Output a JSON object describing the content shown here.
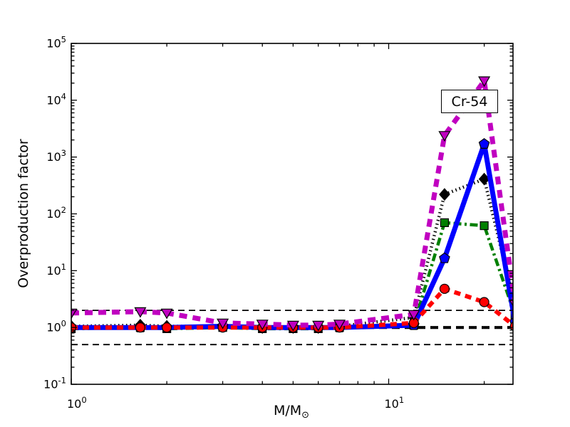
{
  "figure": {
    "background": "#ffffff",
    "frame_color": "#000000"
  },
  "chart_data": {
    "type": "line",
    "x_scale": "log",
    "y_scale": "log",
    "xlabel": {
      "main": "M/M",
      "sub": "⊙"
    },
    "ylabel": "Overproduction factor",
    "annotation": {
      "text": "Cr-54"
    },
    "xlim": [
      1,
      24.7
    ],
    "ylim": [
      0.1,
      100000
    ],
    "x_major_tick_exponents": [
      0,
      1
    ],
    "y_major_tick_exponents": [
      -1,
      0,
      1,
      2,
      3,
      4,
      5
    ],
    "x_minor_ticks": [
      2,
      3,
      4,
      5,
      6,
      7,
      8,
      9,
      20
    ],
    "grid": "off",
    "legend": "none",
    "x": [
      1.0,
      1.65,
      2,
      3,
      4,
      5,
      6,
      7,
      12,
      15,
      20,
      25
    ],
    "series": [
      {
        "name": "black-dotted-diamonds",
        "color": "#000000",
        "linestyle": "dotted",
        "linewidth": 4.5,
        "dash": "1.5 4",
        "marker": "diamond",
        "values": [
          1.05,
          1.1,
          1.05,
          1.05,
          1.0,
          1.0,
          1.0,
          1.05,
          1.5,
          220,
          410,
          2.4
        ]
      },
      {
        "name": "green-dashdot-squares",
        "color": "#008000",
        "linestyle": "dashdot",
        "linewidth": 4.5,
        "dash": "11 4.5 3 4.5",
        "marker": "square",
        "values": [
          0.95,
          1.0,
          0.95,
          1.0,
          0.95,
          0.95,
          0.95,
          1.0,
          1.1,
          70,
          62,
          1.65
        ]
      },
      {
        "name": "blue-solid-pentagons",
        "color": "#0000ff",
        "linestyle": "solid",
        "linewidth": 7,
        "dash": "",
        "marker": "pentagon",
        "values": [
          1.0,
          1.0,
          1.0,
          1.05,
          1.0,
          1.0,
          1.0,
          1.0,
          1.1,
          16.5,
          1700,
          1.25
        ]
      },
      {
        "name": "red-dashed-circles",
        "color": "#ff0000",
        "linestyle": "dashed",
        "linewidth": 6,
        "dash": "9 7",
        "marker": "circle",
        "values": [
          1.0,
          1.0,
          1.0,
          1.0,
          1.0,
          1.0,
          1.0,
          1.0,
          1.2,
          4.8,
          2.8,
          1.05
        ]
      },
      {
        "name": "magenta-dashed-triangles",
        "color": "#c000c0",
        "linestyle": "dashed",
        "linewidth": 7,
        "dash": "11 8",
        "marker": "triangle-down",
        "values": [
          1.8,
          1.9,
          1.8,
          1.2,
          1.15,
          1.1,
          1.1,
          1.15,
          1.7,
          2400,
          22000,
          2.6
        ]
      }
    ],
    "reference_lines": [
      {
        "y": 2,
        "color": "#000000",
        "linewidth": 1.8,
        "dash": "9 6"
      },
      {
        "y": 1,
        "color": "#000000",
        "linewidth": 4.2,
        "dash": "11 7"
      },
      {
        "y": 0.5,
        "color": "#000000",
        "linewidth": 1.8,
        "dash": "9 6"
      }
    ]
  }
}
